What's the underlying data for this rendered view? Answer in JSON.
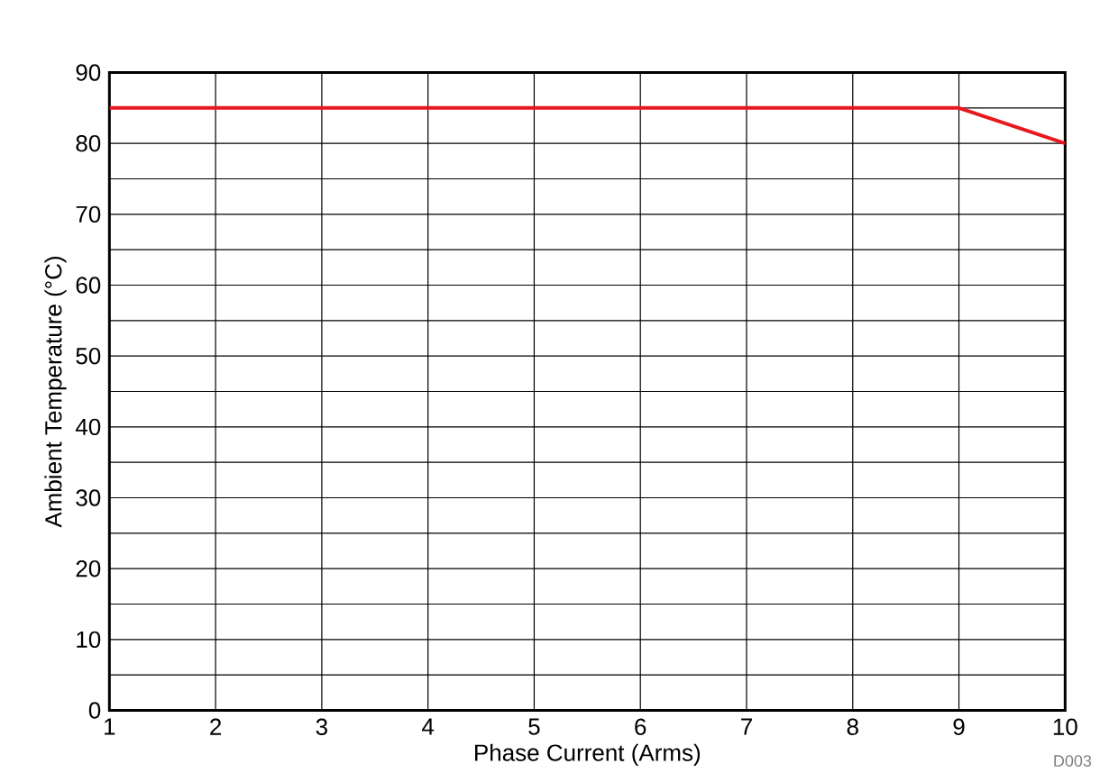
{
  "chart_data": {
    "type": "line",
    "xlabel": "Phase Current (Arms)",
    "ylabel": "Ambient Temperature (°C)",
    "x": [
      1,
      9,
      10
    ],
    "values": [
      85,
      85,
      80
    ],
    "color": "#e8191e",
    "xlim": [
      1,
      10
    ],
    "xticks": [
      1,
      2,
      3,
      4,
      5,
      6,
      7,
      8,
      9,
      10
    ],
    "ylim": [
      0,
      90
    ],
    "yticks": [
      0,
      {
        "value": 5,
        "label": null
      },
      10,
      {
        "value": 15,
        "label": null
      },
      20,
      {
        "value": 25,
        "label": null
      },
      30,
      {
        "value": 35,
        "label": null
      },
      40,
      {
        "value": 45,
        "label": null
      },
      50,
      {
        "value": 55,
        "label": null
      },
      60,
      {
        "value": 65,
        "label": null
      },
      70,
      {
        "value": 75,
        "label": null
      },
      80,
      {
        "value": 85,
        "label": null
      },
      90
    ],
    "grid": true,
    "annotations": [
      "D003"
    ]
  }
}
